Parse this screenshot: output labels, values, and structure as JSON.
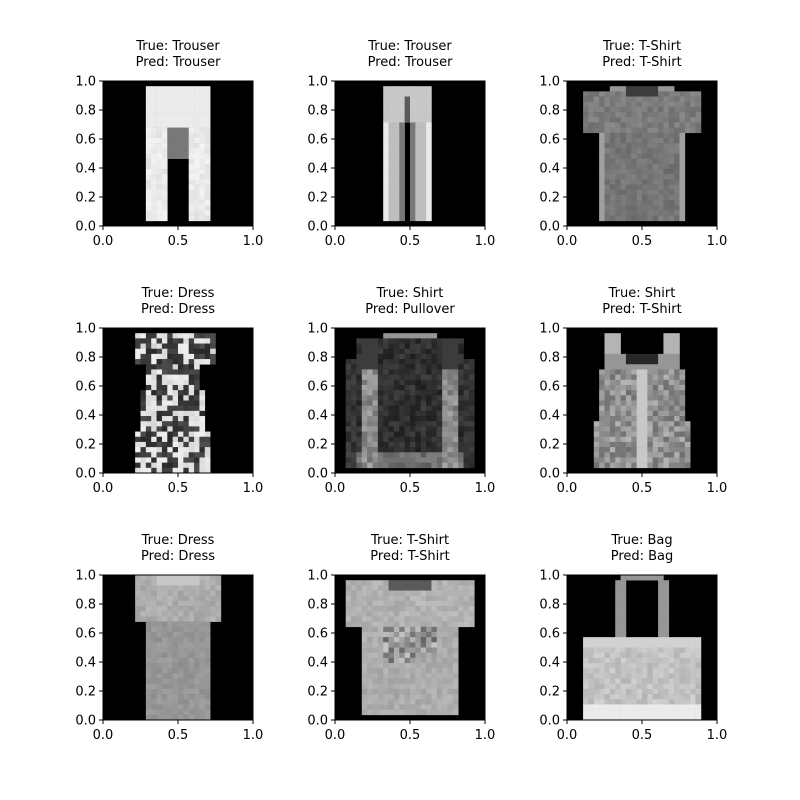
{
  "figure": {
    "background": "#ffffff",
    "image_colormap": "gray",
    "grid": false
  },
  "chart_data": [
    {
      "type": "image",
      "true_label": "True: Trouser",
      "pred_label": "Pred: Trouser",
      "item": "trouser",
      "xlim": [
        0,
        1
      ],
      "ylim": [
        0,
        1
      ],
      "xticks": [
        "0.0",
        "0.5",
        "1.0"
      ],
      "yticks": [
        "0.0",
        "0.2",
        "0.4",
        "0.6",
        "0.8",
        "1.0"
      ]
    },
    {
      "type": "image",
      "true_label": "True: Trouser",
      "pred_label": "Pred: Trouser",
      "item": "trouser-slim",
      "xlim": [
        0,
        1
      ],
      "ylim": [
        0,
        1
      ],
      "xticks": [
        "0.0",
        "0.5",
        "1.0"
      ],
      "yticks": [
        "0.0",
        "0.2",
        "0.4",
        "0.6",
        "0.8",
        "1.0"
      ]
    },
    {
      "type": "image",
      "true_label": "True: T-Shirt",
      "pred_label": "Pred: T-Shirt",
      "item": "tshirt",
      "xlim": [
        0,
        1
      ],
      "ylim": [
        0,
        1
      ],
      "xticks": [
        "0.0",
        "0.5",
        "1.0"
      ],
      "yticks": [
        "0.0",
        "0.2",
        "0.4",
        "0.6",
        "0.8",
        "1.0"
      ]
    },
    {
      "type": "image",
      "true_label": "True: Dress",
      "pred_label": "Pred: Dress",
      "item": "dress-pattern",
      "xlim": [
        0,
        1
      ],
      "ylim": [
        0,
        1
      ],
      "xticks": [
        "0.0",
        "0.5",
        "1.0"
      ],
      "yticks": [
        "0.0",
        "0.2",
        "0.4",
        "0.6",
        "0.8",
        "1.0"
      ]
    },
    {
      "type": "image",
      "true_label": "True: Shirt",
      "pred_label": "Pred: Pullover",
      "item": "shirt-long",
      "xlim": [
        0,
        1
      ],
      "ylim": [
        0,
        1
      ],
      "xticks": [
        "0.0",
        "0.5",
        "1.0"
      ],
      "yticks": [
        "0.0",
        "0.2",
        "0.4",
        "0.6",
        "0.8",
        "1.0"
      ]
    },
    {
      "type": "image",
      "true_label": "True: Shirt",
      "pred_label": "Pred: T-Shirt",
      "item": "tank-top",
      "xlim": [
        0,
        1
      ],
      "ylim": [
        0,
        1
      ],
      "xticks": [
        "0.0",
        "0.5",
        "1.0"
      ],
      "yticks": [
        "0.0",
        "0.2",
        "0.4",
        "0.6",
        "0.8",
        "1.0"
      ]
    },
    {
      "type": "image",
      "true_label": "True: Dress",
      "pred_label": "Pred: Dress",
      "item": "dress-plain",
      "xlim": [
        0,
        1
      ],
      "ylim": [
        0,
        1
      ],
      "xticks": [
        "0.0",
        "0.5",
        "1.0"
      ],
      "yticks": [
        "0.0",
        "0.2",
        "0.4",
        "0.6",
        "0.8",
        "1.0"
      ]
    },
    {
      "type": "image",
      "true_label": "True: T-Shirt",
      "pred_label": "Pred: T-Shirt",
      "item": "tshirt-print",
      "xlim": [
        0,
        1
      ],
      "ylim": [
        0,
        1
      ],
      "xticks": [
        "0.0",
        "0.5",
        "1.0"
      ],
      "yticks": [
        "0.0",
        "0.2",
        "0.4",
        "0.6",
        "0.8",
        "1.0"
      ]
    },
    {
      "type": "image",
      "true_label": "True: Bag",
      "pred_label": "Pred: Bag",
      "item": "bag",
      "xlim": [
        0,
        1
      ],
      "ylim": [
        0,
        1
      ],
      "xticks": [
        "0.0",
        "0.5",
        "1.0"
      ],
      "yticks": [
        "0.0",
        "0.2",
        "0.4",
        "0.6",
        "0.8",
        "1.0"
      ]
    }
  ]
}
